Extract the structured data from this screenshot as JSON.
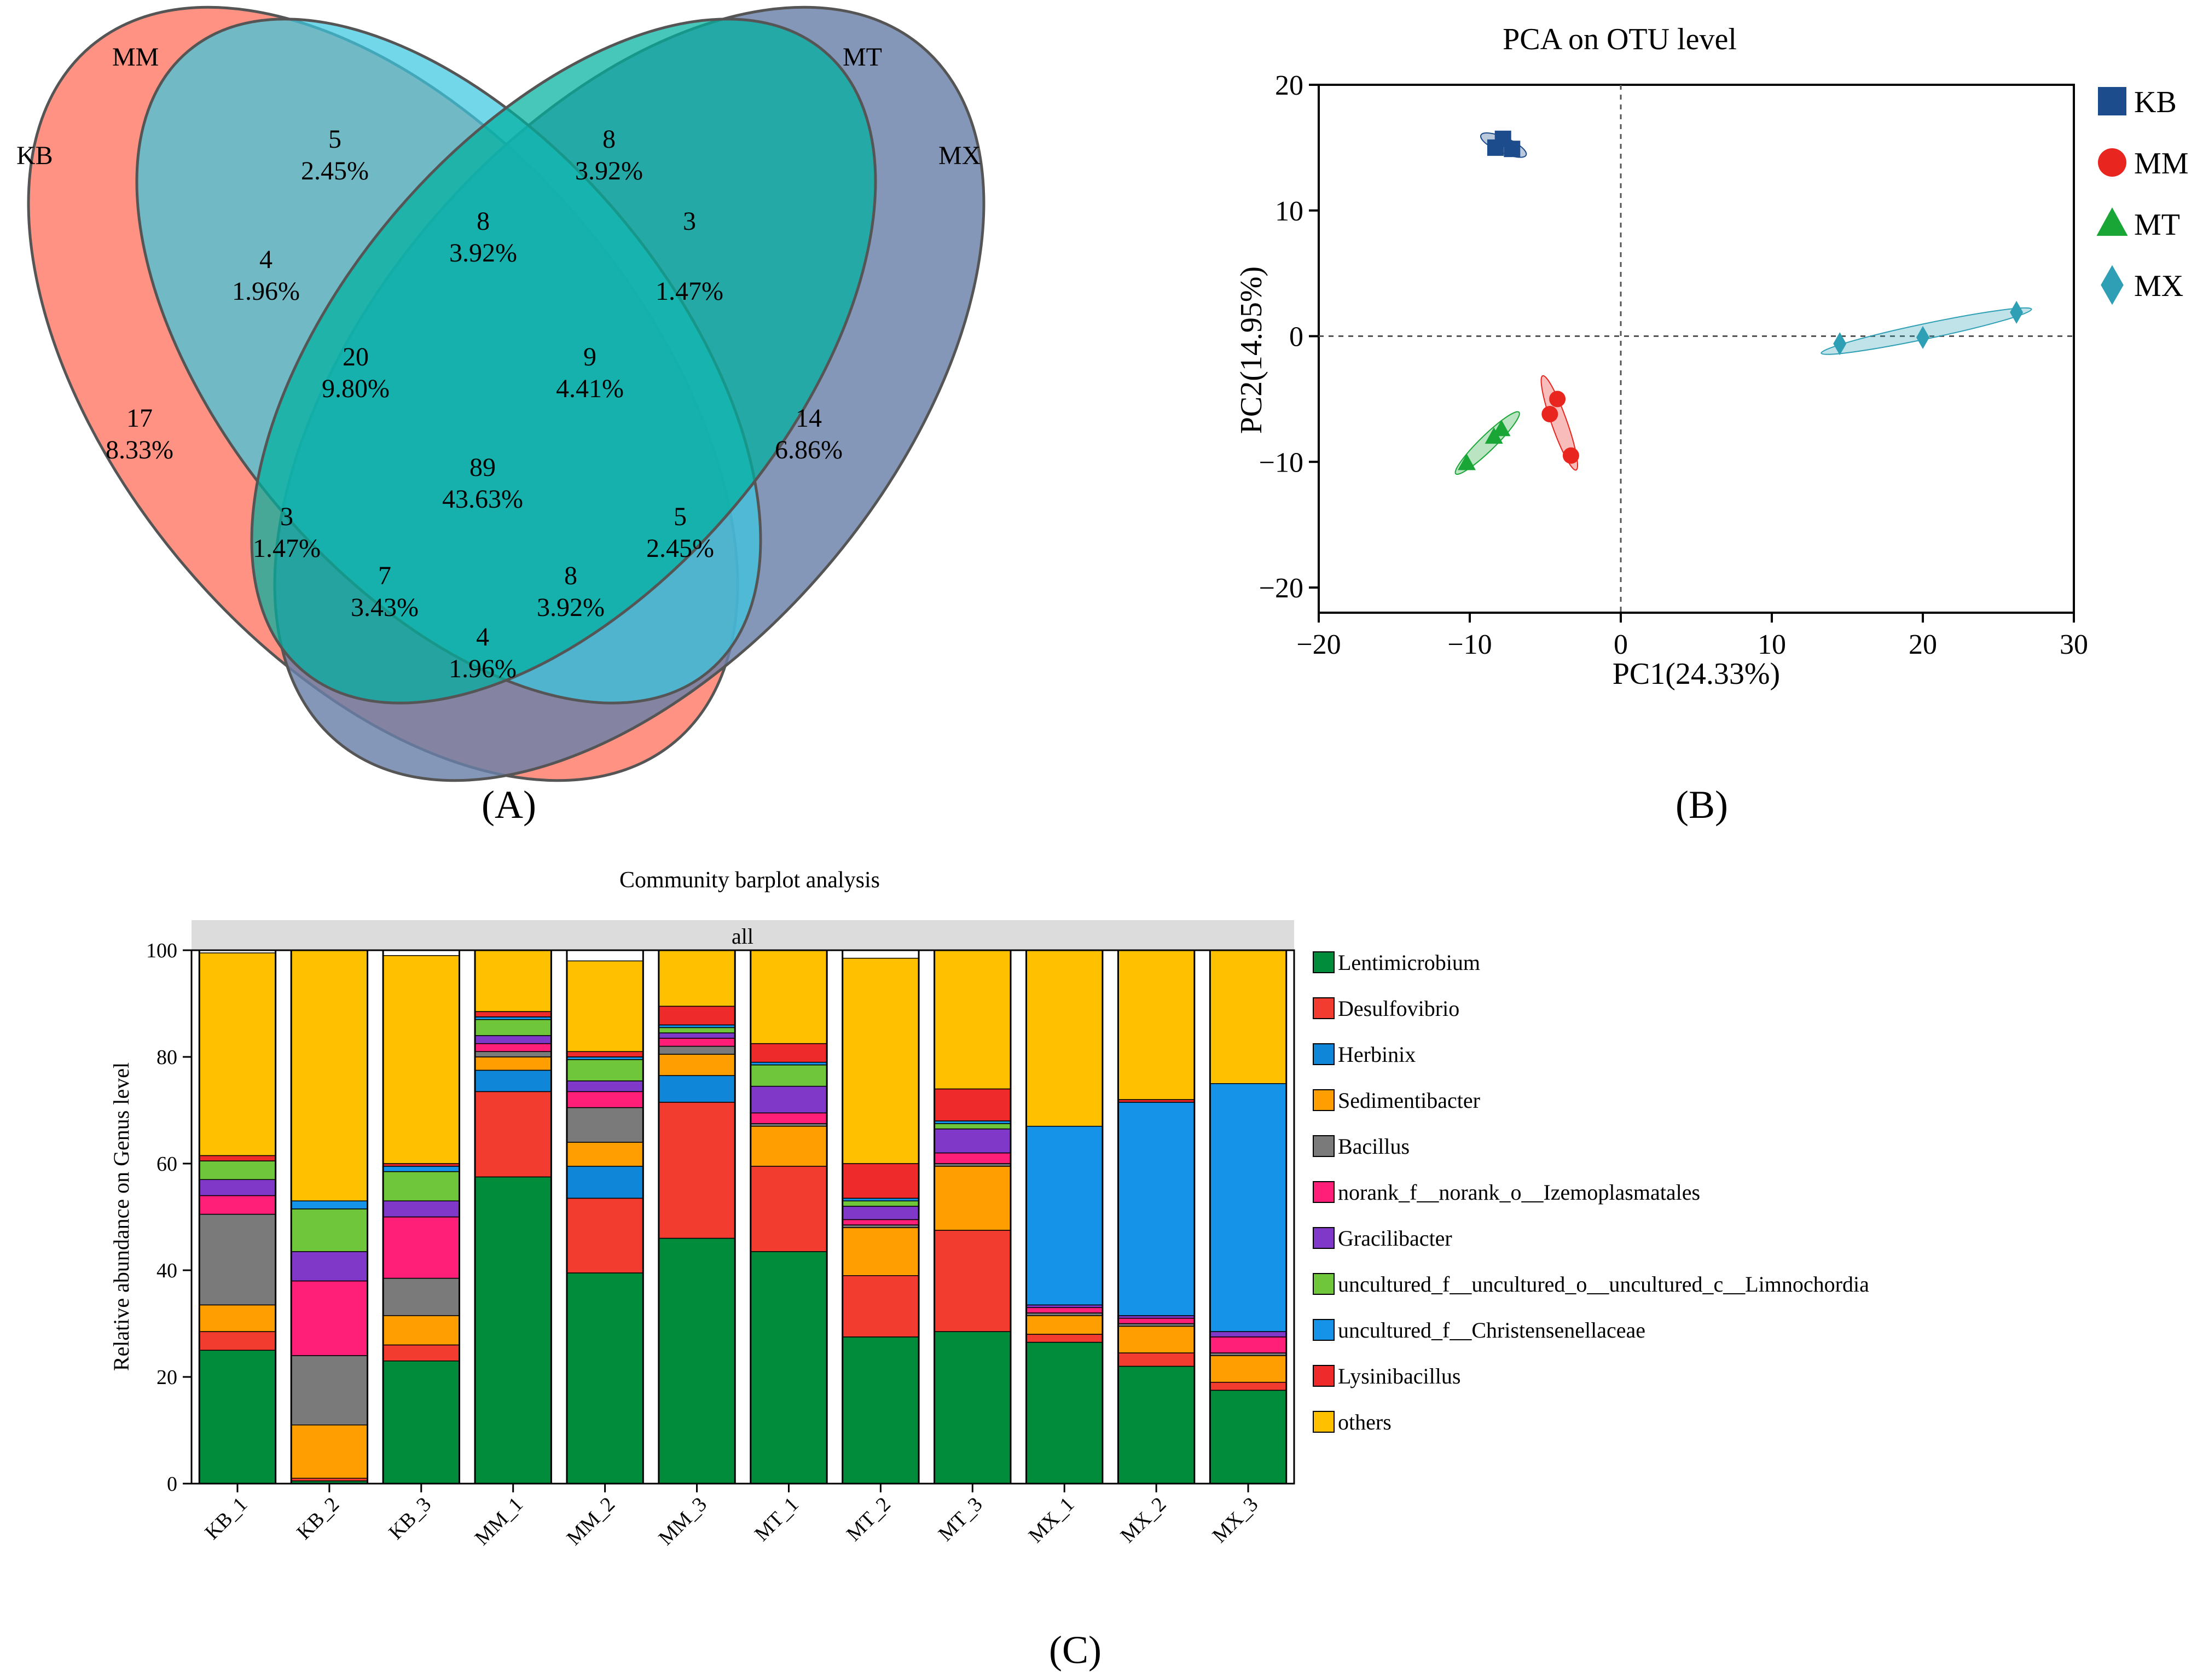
{
  "panels": {
    "a": "(A)",
    "b": "(B)",
    "c": "(C)"
  },
  "venn": {
    "sets": [
      "KB",
      "MM",
      "MT",
      "MX"
    ],
    "colors": {
      "KB": "#ff7a66",
      "MM": "#3cc8e0",
      "MT": "#00b0a0",
      "MX": "#6a80aa"
    },
    "regions": [
      {
        "key": "KB",
        "count": "17",
        "pct": "8.33%"
      },
      {
        "key": "MM",
        "count": "5",
        "pct": "2.45%"
      },
      {
        "key": "MT",
        "count": "8",
        "pct": "3.92%"
      },
      {
        "key": "MX",
        "count": "14",
        "pct": "6.86%"
      },
      {
        "key": "KB_MM",
        "count": "4",
        "pct": "1.96%"
      },
      {
        "key": "MM_MT",
        "count": "8",
        "pct": "3.92%"
      },
      {
        "key": "MT_MX",
        "count": "3",
        "pct": "1.47%"
      },
      {
        "key": "KB_MM_MT",
        "count": "20",
        "pct": "9.80%"
      },
      {
        "key": "MM_MT_MX",
        "count": "9",
        "pct": "4.41%"
      },
      {
        "key": "ALL",
        "count": "89",
        "pct": "43.63%"
      },
      {
        "key": "KB_MT",
        "count": "3",
        "pct": "1.47%"
      },
      {
        "key": "MM_MX",
        "count": "5",
        "pct": "2.45%"
      },
      {
        "key": "KB_MT_MX",
        "count": "7",
        "pct": "3.43%"
      },
      {
        "key": "KB_MM_MX",
        "count": "8",
        "pct": "3.92%"
      },
      {
        "key": "KB_MX",
        "count": "4",
        "pct": "1.96%"
      }
    ]
  },
  "chart_data": [
    {
      "type": "scatter",
      "title": "PCA on OTU level",
      "xlabel": "PC1(24.33%)",
      "ylabel": "PC2(14.95%)",
      "xlim": [
        -20,
        30
      ],
      "ylim": [
        -22,
        20
      ],
      "xticks": [
        -20,
        -10,
        0,
        10,
        20,
        30
      ],
      "yticks": [
        -20,
        -10,
        0,
        10,
        20
      ],
      "xtick_labels": [
        "−20",
        "−10",
        "0",
        "10",
        "20",
        "30"
      ],
      "ytick_labels": [
        "−20",
        "−10",
        "0",
        "10",
        "20"
      ],
      "legend_position": "right",
      "series": [
        {
          "name": "KB",
          "marker": "square",
          "color": "#1c4c8c",
          "points": [
            [
              -7.8,
              15.7
            ],
            [
              -8.3,
              15.0
            ],
            [
              -7.2,
              14.9
            ]
          ]
        },
        {
          "name": "MM",
          "marker": "circle",
          "color": "#e8251e",
          "points": [
            [
              -4.7,
              -6.2
            ],
            [
              -4.2,
              -5.0
            ],
            [
              -3.3,
              -9.5
            ]
          ]
        },
        {
          "name": "MT",
          "marker": "triangle",
          "color": "#1aa636",
          "points": [
            [
              -10.2,
              -10.1
            ],
            [
              -8.4,
              -8.0
            ],
            [
              -7.9,
              -7.4
            ]
          ]
        },
        {
          "name": "MX",
          "marker": "diamond",
          "color": "#2e9fb5",
          "points": [
            [
              14.5,
              -0.6
            ],
            [
              20.0,
              -0.1
            ],
            [
              26.2,
              1.9
            ]
          ]
        }
      ]
    },
    {
      "type": "bar",
      "stacked": true,
      "title": "Community barplot analysis",
      "facet": "all",
      "ylabel": "Relative abundance on Genus level",
      "ylim": [
        0,
        100
      ],
      "yticks": [
        0,
        20,
        40,
        60,
        80,
        100
      ],
      "categories": [
        "KB_1",
        "KB_2",
        "KB_3",
        "MM_1",
        "MM_2",
        "MM_3",
        "MT_1",
        "MT_2",
        "MT_3",
        "MX_1",
        "MX_2",
        "MX_3"
      ],
      "series": [
        {
          "name": "Lentimicrobium",
          "color": "#008c3a",
          "values": [
            25,
            0.5,
            23,
            57.5,
            39.5,
            46,
            43.5,
            27.5,
            28.5,
            26.5,
            22,
            17.5
          ]
        },
        {
          "name": "Desulfovibrio",
          "color": "#f23c30",
          "values": [
            3.5,
            0.5,
            3,
            16,
            14,
            25.5,
            16,
            11.5,
            19,
            1.5,
            2.5,
            1.5
          ]
        },
        {
          "name": "Herbinix",
          "color": "#0f86d8",
          "values": [
            0,
            0,
            0,
            4,
            6,
            5,
            0,
            0,
            0,
            0,
            0,
            0
          ]
        },
        {
          "name": "Sedimentibacter",
          "color": "#ff9e00",
          "values": [
            5,
            10,
            5.5,
            2.5,
            4.5,
            4,
            7.5,
            9,
            12,
            3.5,
            5,
            5
          ]
        },
        {
          "name": "Bacillus",
          "color": "#7a7a7a",
          "values": [
            17,
            13,
            7,
            1,
            6.5,
            1.5,
            0.5,
            0.5,
            0.5,
            0.5,
            0.5,
            0.5
          ]
        },
        {
          "name": "norank_f__norank_o__Izemoplasmatales",
          "color": "#ff1e78",
          "values": [
            3.5,
            14,
            11.5,
            1.5,
            3,
            1.5,
            2,
            1,
            2,
            1,
            1,
            3
          ]
        },
        {
          "name": "Gracilibacter",
          "color": "#7f38c8",
          "values": [
            3,
            5.5,
            3,
            1.5,
            2,
            1,
            5,
            2.5,
            4.5,
            0.5,
            0.5,
            1
          ]
        },
        {
          "name": "uncultured_f__uncultured_o__uncultured_c__Limnochordia",
          "color": "#6fc63a",
          "values": [
            3.5,
            8,
            5.5,
            3,
            4,
            1,
            4,
            1,
            1,
            0,
            0,
            0
          ]
        },
        {
          "name": "uncultured_f__Christensenellaceae",
          "color": "#1593e8",
          "values": [
            0,
            1.5,
            1,
            0.5,
            0.5,
            0.5,
            0.5,
            0.5,
            0.5,
            33.5,
            40,
            46.5
          ]
        },
        {
          "name": "Lysinibacillus",
          "color": "#ee2a2a",
          "values": [
            1,
            0,
            0.5,
            1,
            1,
            3.5,
            3.5,
            6.5,
            6,
            0,
            0.5,
            0
          ]
        },
        {
          "name": "others",
          "color": "#ffc000",
          "values": [
            38,
            47,
            39,
            11.5,
            17,
            10.5,
            17.5,
            38.5,
            26,
            33,
            28,
            25
          ]
        }
      ]
    }
  ]
}
